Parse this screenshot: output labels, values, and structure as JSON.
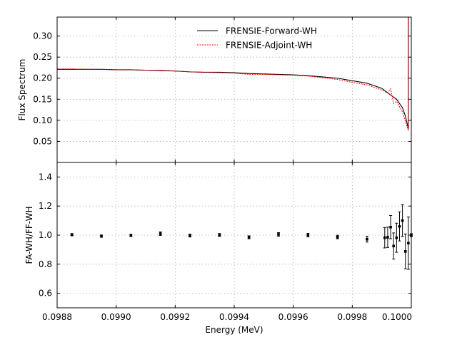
{
  "chart_data": [
    {
      "type": "line",
      "panel": "top",
      "ylabel": "Flux Spectrum",
      "xlim": [
        0.0988,
        0.1
      ],
      "ylim": [
        0.0,
        0.345
      ],
      "yticks": [
        0.05,
        0.1,
        0.15,
        0.2,
        0.25,
        0.3
      ],
      "ytick_labels": [
        "0.05",
        "0.10",
        "0.15",
        "0.20",
        "0.25",
        "0.30"
      ],
      "grid": true,
      "legend_position": "top-center",
      "series": [
        {
          "name": "FRENSIE-Forward-WH",
          "color": "#000000",
          "style": "solid",
          "x": [
            0.0988,
            0.09885,
            0.0989,
            0.09895,
            0.099,
            0.09905,
            0.0991,
            0.09915,
            0.0992,
            0.09925,
            0.0993,
            0.09935,
            0.0994,
            0.09945,
            0.0995,
            0.09955,
            0.0996,
            0.09965,
            0.0997,
            0.09975,
            0.0998,
            0.09985,
            0.0999,
            0.09993,
            0.09995,
            0.09997,
            0.09998,
            0.09999,
            0.09999,
            0.1
          ],
          "y": [
            0.221,
            0.221,
            0.221,
            0.221,
            0.22,
            0.22,
            0.219,
            0.218,
            0.217,
            0.215,
            0.214,
            0.214,
            0.213,
            0.211,
            0.21,
            0.209,
            0.208,
            0.206,
            0.203,
            0.2,
            0.194,
            0.188,
            0.176,
            0.16,
            0.15,
            0.13,
            0.11,
            0.08,
            0.345,
            0.345
          ]
        },
        {
          "name": "FRENSIE-Adjoint-WH",
          "color": "#ff0000",
          "style": "dashed",
          "x": [
            0.0988,
            0.09885,
            0.0989,
            0.09895,
            0.099,
            0.09905,
            0.0991,
            0.09915,
            0.0992,
            0.09925,
            0.0993,
            0.09935,
            0.0994,
            0.09945,
            0.0995,
            0.09955,
            0.0996,
            0.09965,
            0.0997,
            0.09975,
            0.0998,
            0.09985,
            0.0999,
            0.09992,
            0.09993,
            0.09994,
            0.09995,
            0.09997,
            0.09999,
            0.09999,
            0.1
          ],
          "y": [
            0.222,
            0.222,
            0.221,
            0.221,
            0.22,
            0.22,
            0.219,
            0.219,
            0.217,
            0.215,
            0.214,
            0.213,
            0.212,
            0.209,
            0.209,
            0.208,
            0.207,
            0.205,
            0.201,
            0.197,
            0.19,
            0.184,
            0.172,
            0.165,
            0.175,
            0.14,
            0.145,
            0.12,
            0.075,
            0.345,
            0.345
          ]
        }
      ]
    },
    {
      "type": "scatter",
      "panel": "bottom",
      "xlabel": "Energy (MeV)",
      "ylabel": "FA-WH/FF-WH",
      "xlim": [
        0.0988,
        0.1
      ],
      "ylim": [
        0.5,
        1.5
      ],
      "yticks": [
        0.6,
        0.8,
        1.0,
        1.2,
        1.4
      ],
      "ytick_labels": [
        "0.6",
        "0.8",
        "1.0",
        "1.2",
        "1.4"
      ],
      "xticks": [
        0.0988,
        0.099,
        0.0992,
        0.0994,
        0.0996,
        0.0998,
        0.1
      ],
      "xtick_labels": [
        "0.0988",
        "0.0990",
        "0.0992",
        "0.0994",
        "0.0996",
        "0.0998",
        "0.1000"
      ],
      "grid": true,
      "series": [
        {
          "name": "",
          "color": "#000000",
          "x": [
            0.09885,
            0.09895,
            0.09905,
            0.09915,
            0.09925,
            0.09935,
            0.09945,
            0.09955,
            0.09965,
            0.09975,
            0.09985,
            0.09991,
            0.09992,
            0.09993,
            0.09994,
            0.09995,
            0.09996,
            0.09997,
            0.09998,
            0.09999,
            0.1
          ],
          "y": [
            1.003,
            0.993,
            0.998,
            1.01,
            0.997,
            1.001,
            0.985,
            1.005,
            1.0,
            0.987,
            0.972,
            0.982,
            0.985,
            1.055,
            0.925,
            0.982,
            1.06,
            1.1,
            0.888,
            0.945,
            1.0
          ],
          "yerr": [
            0.008,
            0.008,
            0.008,
            0.012,
            0.01,
            0.01,
            0.01,
            0.012,
            0.012,
            0.012,
            0.02,
            0.07,
            0.07,
            0.08,
            0.09,
            0.1,
            0.1,
            0.11,
            0.12,
            0.18,
            0.01
          ]
        }
      ]
    }
  ]
}
